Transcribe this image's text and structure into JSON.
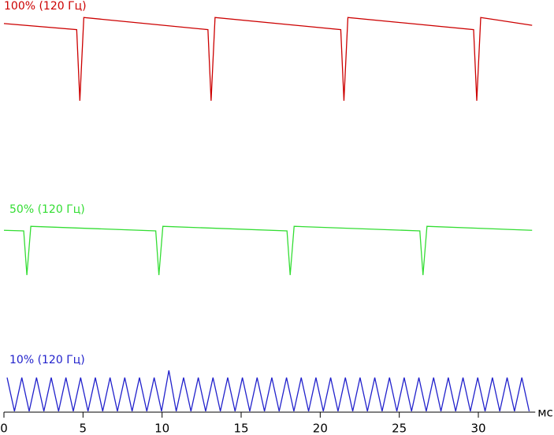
{
  "chart_data": {
    "type": "line",
    "x_label": "мс",
    "xlim": [
      0,
      33.6
    ],
    "xticks": [
      0,
      5,
      10,
      15,
      20,
      25,
      30
    ],
    "ylim": [
      0,
      100
    ],
    "series": [
      {
        "name": "100% (120 Гц)",
        "color": "#cc0000",
        "x": [
          0,
          4.6,
          4.8,
          5.05,
          12.9,
          13.1,
          13.35,
          21.3,
          21.5,
          21.75,
          29.7,
          29.9,
          30.15,
          33.4
        ],
        "values": [
          91,
          84,
          2,
          98,
          84,
          2,
          98,
          84,
          2,
          98,
          84,
          2,
          98,
          89
        ]
      },
      {
        "name": "50% (120 Гц)",
        "color": "#33dd33",
        "x": [
          0,
          1.25,
          1.45,
          1.7,
          9.6,
          9.8,
          10.05,
          17.9,
          18.1,
          18.35,
          26.3,
          26.5,
          26.75,
          33.4
        ],
        "values": [
          83,
          82,
          4,
          90,
          82,
          4,
          90,
          82,
          4,
          90,
          82,
          4,
          90,
          83
        ]
      },
      {
        "name": "10% (120 Гц)",
        "color": "#2222cc",
        "x": [
          0.2,
          0.665,
          1.13,
          1.595,
          2.06,
          2.525,
          2.99,
          3.455,
          3.92,
          4.385,
          4.85,
          5.315,
          5.78,
          6.245,
          6.71,
          7.175,
          7.64,
          8.105,
          8.57,
          9.035,
          9.5,
          9.965,
          10.43,
          10.895,
          11.36,
          11.825,
          12.29,
          12.755,
          13.22,
          13.685,
          14.15,
          14.615,
          15.08,
          15.545,
          16.01,
          16.475,
          16.94,
          17.405,
          17.87,
          18.335,
          18.8,
          19.265,
          19.73,
          20.195,
          20.66,
          21.125,
          21.59,
          22.055,
          22.52,
          22.985,
          23.45,
          23.915,
          24.38,
          24.845,
          25.31,
          25.775,
          26.24,
          26.705,
          27.17,
          27.635,
          28.1,
          28.565,
          29.03,
          29.495,
          29.96,
          30.425,
          30.89,
          31.355,
          31.82,
          32.285,
          32.75,
          33.215
        ],
        "values": [
          83,
          4,
          83,
          4,
          83,
          4,
          83,
          4,
          83,
          4,
          83,
          4,
          83,
          4,
          83,
          4,
          83,
          4,
          83,
          4,
          83,
          4,
          100,
          4,
          83,
          4,
          83,
          4,
          83,
          4,
          83,
          4,
          83,
          4,
          83,
          4,
          83,
          4,
          83,
          4,
          83,
          4,
          83,
          4,
          83,
          4,
          83,
          4,
          83,
          4,
          83,
          4,
          83,
          4,
          83,
          4,
          83,
          4,
          83,
          4,
          83,
          4,
          83,
          4,
          83,
          4,
          83,
          4,
          83,
          4,
          83,
          4
        ]
      }
    ]
  }
}
